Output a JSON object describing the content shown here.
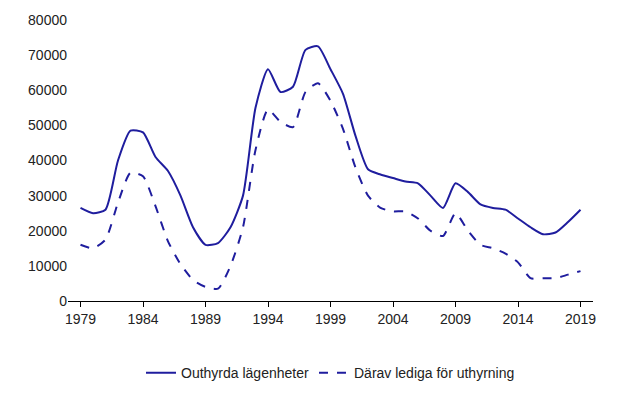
{
  "chart_data": {
    "type": "line",
    "x": [
      1979,
      1980,
      1981,
      1982,
      1983,
      1984,
      1985,
      1986,
      1987,
      1988,
      1989,
      1990,
      1991,
      1992,
      1993,
      1994,
      1995,
      1996,
      1997,
      1998,
      1999,
      2000,
      2001,
      2002,
      2003,
      2004,
      2005,
      2006,
      2007,
      2008,
      2009,
      2010,
      2011,
      2012,
      2013,
      2014,
      2015,
      2016,
      2017,
      2018,
      2019
    ],
    "series": [
      {
        "name": "Outhyrda lägenheter",
        "color": "#1f1d9e",
        "line_style": "solid",
        "values": [
          26500,
          25000,
          26000,
          40000,
          48500,
          48000,
          41000,
          37000,
          30000,
          21000,
          16000,
          16500,
          21000,
          30000,
          55000,
          66000,
          59500,
          61000,
          71500,
          72500,
          66000,
          59000,
          47000,
          37500,
          36000,
          35000,
          34000,
          33500,
          30000,
          26500,
          33500,
          31000,
          27500,
          26500,
          26000,
          23500,
          21000,
          19000,
          19500,
          22500,
          26000
        ]
      },
      {
        "name": "Därav lediga för uthyrning",
        "color": "#1f1d9e",
        "line_style": "dash",
        "values": [
          16000,
          15000,
          17500,
          28000,
          36500,
          35500,
          27000,
          17000,
          10500,
          6000,
          4000,
          3500,
          10000,
          21000,
          43000,
          54500,
          51000,
          49500,
          59500,
          62000,
          57000,
          49000,
          38000,
          30000,
          26500,
          25500,
          25500,
          23500,
          20000,
          18500,
          25000,
          20000,
          16000,
          15000,
          13500,
          11000,
          6500,
          6500,
          6500,
          7500,
          8500
        ]
      }
    ],
    "xlim": [
      1978,
      2020
    ],
    "xticks": [
      1979,
      1984,
      1989,
      1994,
      1999,
      2004,
      2009,
      2014,
      2019
    ],
    "ylim": [
      0,
      80000
    ],
    "yticks": [
      0,
      10000,
      20000,
      30000,
      40000,
      50000,
      60000,
      70000,
      80000
    ],
    "grid": false,
    "legend": "bottom"
  }
}
